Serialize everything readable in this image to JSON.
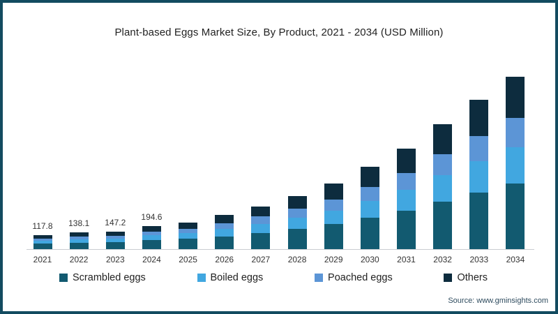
{
  "title": "Plant-based Eggs Market Size, By Product, 2021 - 2034 (USD Million)",
  "source": "Source: www.gminsights.com",
  "frame": {
    "border_color": "#134b60",
    "background": "#ffffff"
  },
  "chart_data": {
    "type": "bar",
    "stacked": true,
    "title": "Plant-based Eggs Market Size, By Product, 2021 - 2034 (USD Million)",
    "xlabel": "",
    "ylabel": "USD Million",
    "ylim": [
      0,
      1500
    ],
    "grid": false,
    "legend_position": "bottom",
    "categories": [
      "2021",
      "2022",
      "2023",
      "2024",
      "2025",
      "2026",
      "2027",
      "2028",
      "2029",
      "2030",
      "2031",
      "2032",
      "2033",
      "2034"
    ],
    "totals": [
      117.8,
      138.1,
      147.2,
      194.6,
      225,
      285,
      360,
      445,
      550,
      690,
      845,
      1050,
      1255,
      1450
    ],
    "data_labels": [
      "117.8",
      "138.1",
      "147.2",
      "194.6",
      "",
      "",
      "",
      "",
      "",
      "",
      "",
      "",
      "",
      ""
    ],
    "series": [
      {
        "name": "Scrambled eggs",
        "color": "#125a70",
        "values": [
          44.8,
          52.5,
          55.9,
          74.0,
          85.5,
          108.3,
          136.8,
          169.1,
          209.0,
          262.2,
          321.1,
          399.0,
          476.9,
          551.0
        ]
      },
      {
        "name": "Boiled eggs",
        "color": "#41a7e0",
        "values": [
          24.7,
          29.0,
          30.9,
          40.9,
          47.3,
          59.9,
          75.6,
          93.5,
          115.5,
          144.9,
          177.5,
          220.5,
          263.6,
          304.5
        ]
      },
      {
        "name": "Poached eggs",
        "color": "#5c95d6",
        "values": [
          20.0,
          23.5,
          25.0,
          33.1,
          38.2,
          48.4,
          61.2,
          75.6,
          93.5,
          117.3,
          143.6,
          178.5,
          213.3,
          246.5
        ]
      },
      {
        "name": "Others",
        "color": "#0d2c3e",
        "values": [
          28.3,
          33.1,
          35.4,
          46.6,
          54.0,
          68.4,
          86.4,
          106.8,
          132.0,
          165.6,
          202.8,
          252.0,
          301.2,
          348.0
        ]
      }
    ]
  }
}
